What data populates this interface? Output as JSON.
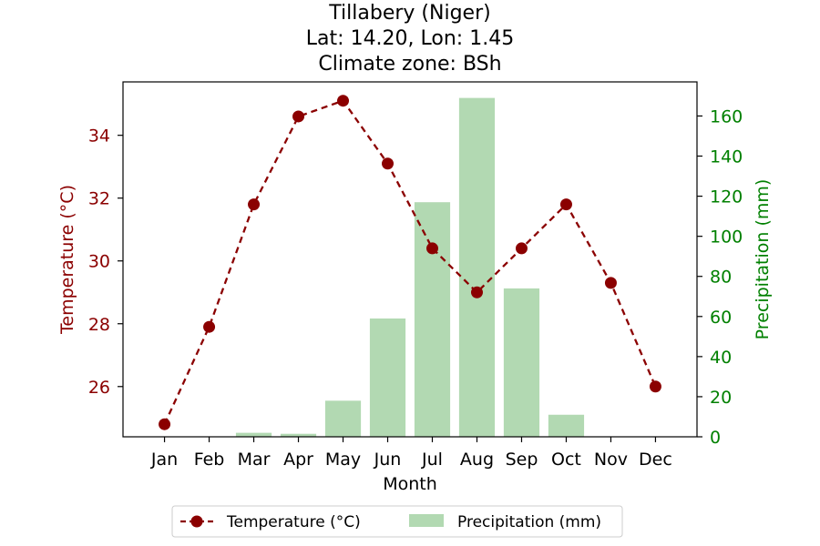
{
  "chart_data": {
    "type": "bar+line",
    "title_lines": [
      "Tillabery (Niger)",
      "Lat: 14.20, Lon: 1.45",
      "Climate zone: BSh"
    ],
    "xlabel": "Month",
    "categories": [
      "Jan",
      "Feb",
      "Mar",
      "Apr",
      "May",
      "Jun",
      "Jul",
      "Aug",
      "Sep",
      "Oct",
      "Nov",
      "Dec"
    ],
    "series": [
      {
        "name": "Temperature (°C)",
        "kind": "line",
        "axis": "left",
        "values": [
          24.8,
          27.9,
          31.8,
          34.6,
          35.1,
          33.1,
          30.4,
          29.0,
          30.4,
          31.8,
          29.3,
          26.0
        ]
      },
      {
        "name": "Precipitation (mm)",
        "kind": "bar",
        "axis": "right",
        "values": [
          0,
          0,
          2,
          1.5,
          18,
          59,
          117,
          169,
          74,
          11,
          0,
          0
        ]
      }
    ],
    "y_left": {
      "label": "Temperature (°C)",
      "ylim": [
        24.4,
        35.7
      ],
      "ticks": [
        26,
        28,
        30,
        32,
        34
      ]
    },
    "y_right": {
      "label": "Precipitation (mm)",
      "ylim": [
        0,
        177
      ],
      "ticks": [
        0,
        20,
        40,
        60,
        80,
        100,
        120,
        140,
        160
      ]
    },
    "legend_position": "bottom-center",
    "colors": {
      "temperature": "#8b0000",
      "precipitation": "#b2d9b2",
      "left_axis": "#8b0000",
      "right_axis": "#008000"
    }
  }
}
